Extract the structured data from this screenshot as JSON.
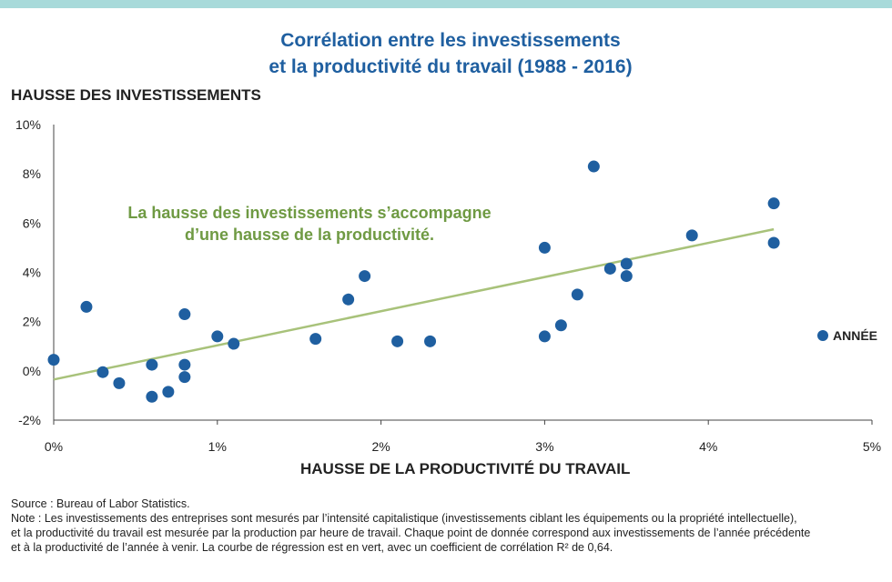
{
  "title": {
    "line1": "Corrélation entre les investissements",
    "line2": "et la productivité du travail (1988 - 2016)"
  },
  "annotation": {
    "line1": "La hausse des investissements s’accompagne",
    "line2": "d’une hausse de la productivité."
  },
  "footer": {
    "source": "Source : Bureau of Labor Statistics.",
    "note1": "Note : Les investissements des entreprises sont mesurés par l’intensité capitalistique (investissements ciblant les équipements ou la propriété intellectuelle),",
    "note2": "et la productivité du travail est mesurée par la production par heure de travail. Chaque point de donnée correspond aux investissements de l’année précédente",
    "note3": "et à la productivité de l’année à venir. La courbe de régression est en vert, avec un coefficient de corrélation R² de 0,64."
  },
  "colors": {
    "title": "#1f5fa0",
    "points": "#1f5fa0",
    "regression": "#a8c27a",
    "annotation": "#6f9a43",
    "top_bar": "#a8dada"
  },
  "chart_data": {
    "type": "scatter",
    "title": "Corrélation entre les investissements et la productivité du travail (1988 - 2016)",
    "xlabel": "HAUSSE DE LA PRODUCTIVITÉ DU TRAVAIL",
    "ylabel": "HAUSSE DES INVESTISSEMENTS",
    "xlim": [
      0,
      5
    ],
    "ylim": [
      -2,
      10
    ],
    "x_ticks": [
      0,
      1,
      2,
      3,
      4,
      5
    ],
    "x_tick_labels": [
      "0%",
      "1%",
      "2%",
      "3%",
      "4%",
      "5%"
    ],
    "y_ticks": [
      -2,
      0,
      2,
      4,
      6,
      8,
      10
    ],
    "y_tick_labels": [
      "-2%",
      "0%",
      "2%",
      "4%",
      "6%",
      "8%",
      "10%"
    ],
    "grid": false,
    "legend": {
      "position": "right",
      "label": "ANNÉE"
    },
    "series": [
      {
        "name": "ANNÉE",
        "points": [
          [
            0.0,
            0.45
          ],
          [
            0.2,
            2.6
          ],
          [
            0.3,
            -0.05
          ],
          [
            0.4,
            -0.5
          ],
          [
            0.6,
            0.25
          ],
          [
            0.6,
            -1.05
          ],
          [
            0.7,
            -0.85
          ],
          [
            0.8,
            2.3
          ],
          [
            0.8,
            0.25
          ],
          [
            0.8,
            -0.25
          ],
          [
            1.0,
            1.4
          ],
          [
            1.1,
            1.1
          ],
          [
            1.6,
            1.3
          ],
          [
            1.8,
            2.9
          ],
          [
            1.9,
            3.85
          ],
          [
            2.1,
            1.2
          ],
          [
            2.3,
            1.2
          ],
          [
            3.0,
            5.0
          ],
          [
            3.0,
            1.4
          ],
          [
            3.1,
            1.85
          ],
          [
            3.2,
            3.1
          ],
          [
            3.3,
            8.3
          ],
          [
            3.4,
            4.15
          ],
          [
            3.5,
            4.35
          ],
          [
            3.5,
            3.85
          ],
          [
            3.9,
            5.5
          ],
          [
            4.4,
            6.8
          ],
          [
            4.4,
            5.2
          ]
        ]
      }
    ],
    "regression": {
      "x": [
        0.0,
        4.4
      ],
      "y": [
        -0.35,
        5.75
      ]
    }
  }
}
